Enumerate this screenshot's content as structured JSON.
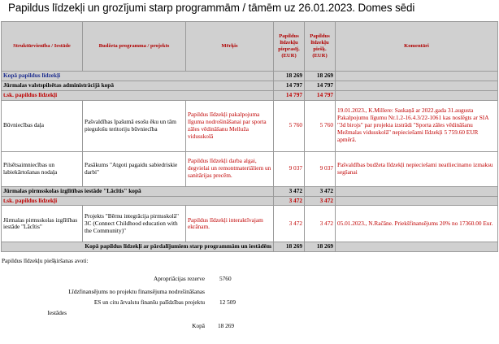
{
  "title": "Papildus līdzekļi un grozījumi starp programmām / tāmēm uz 26.01.2023. Domes sēdi",
  "headers": {
    "unit": "Struktūrvienība / Iestāde",
    "program": "Budžeta programma / projekts",
    "goal": "Mērķis",
    "col_plan": "Papildus līdzekļu pieprasīj. (EUR)",
    "col_add": "Papildus līdzekļu piešķ. (EUR)",
    "comments": "Komentāri"
  },
  "rows": {
    "kopa_papildus": {
      "label": "Kopā papildus līdzekļi",
      "v1": "18 269",
      "v2": "18 269"
    },
    "admin_kopa": {
      "label": "Jūrmalas valstspilsētas administrācijā kopā",
      "v1": "14 797",
      "v2": "14 797"
    },
    "admin_sk": {
      "label": "t.sk. papildus līdzekļi",
      "v1": "14 797",
      "v2": "14 797"
    },
    "buvn": {
      "unit": "Būvniecības daļa",
      "program": "Pašvaldības īpašumā esošu ēku un tām piegulošu teritoriju būvniecība",
      "goal": "Papildus līdzekļi pakalpojuma līguma nodrošināšanai par sporta zāles vēdināšanu Melluža vidusskolā",
      "v1": "5 760",
      "v2": "5 760",
      "comment": "19.01.2023., K.Millere: Saskaņā ar 2022.gada 31.augusta Pakalpojumu līgumu Nr.1.2-16.4.3/22-1061 kas noslēgts ar SIA \"3d birojs\" par projekta izstrādi \"Sporta zāles vēdināšanu Mežmalas vidusskolā\" nepieciešami līdzekļi 5 759.60 EUR apmērā."
    },
    "plsaimn": {
      "unit": "Pilsētsaimniecības un labiekārtošanas nodaļa",
      "program": "Pasākums \"Atgoti pagaidu sabiedriskie darbi\"",
      "goal": "Papildus līdzekļi darba algai, degvielai un remontmateriāliem un sanitārijas precēm.",
      "v1": "9 037",
      "v2": "9 037",
      "comment": "Pašvaldības budžeta līdzekļi nepieciešami neatliecinamo izmaksu segšanai"
    },
    "lacits_kopa": {
      "label": "Jūrmalas pirmsskolas izglītības iestāde \"Lācītis\" kopā",
      "v1": "3 472",
      "v2": "3 472"
    },
    "lacits_sk": {
      "label": "t.sk. papildus līdzekļi",
      "v1": "3 472",
      "v2": "3 472"
    },
    "lacits": {
      "unit": "Jūrmalas pirmsskolas izglītības iestāde \"Lācītis\"",
      "program": "Projekts \"Bērnu integrācija pirmsskolā\" 3C (Connect Childhood education with the Community)\"",
      "goal": "Papildus līdzekļi interaktīvajam ekrānam.",
      "v1": "3 472",
      "v2": "3 472",
      "comment": "05.01.2023., N.Račāne. Priekšfinansējums 20% no 17360.00 Eur."
    },
    "total": {
      "label": "Kopā papildus līdzekļi ar pārdalījumiem starp programmām un iestādēm",
      "v1": "18 269",
      "v2": "18 269"
    }
  },
  "footer": {
    "title": "Papildus līdzekļu piešķiršanas avoti:",
    "items": [
      {
        "label": "Apropriācijas rezerve",
        "value": "5760"
      },
      {
        "label": "Līdzfinansējums no projektu finansējuma nodrošināšanas",
        "value": ""
      },
      {
        "label": "ES un citu ārvalstu finanšu palīdzības projektu",
        "value": "12 509"
      },
      {
        "label": "Iestādes",
        "value": ""
      },
      {
        "label": "Kopā",
        "value": "18 269"
      }
    ]
  }
}
